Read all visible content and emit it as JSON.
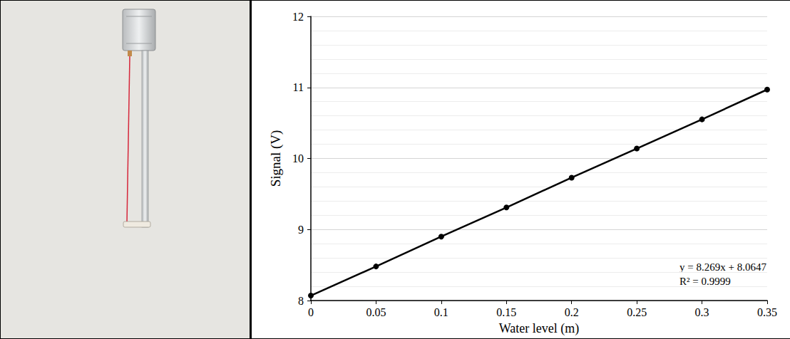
{
  "chart_data": {
    "type": "line",
    "xlabel": "Water level (m)",
    "ylabel": "Signal (V)",
    "x": [
      0,
      0.05,
      0.1,
      0.15,
      0.2,
      0.25,
      0.3,
      0.35
    ],
    "values": [
      8.07,
      8.48,
      8.9,
      9.31,
      9.73,
      10.14,
      10.55,
      10.97
    ],
    "color": "#000000",
    "marker": "circle",
    "line_style": "solid",
    "xlim": [
      0,
      0.35
    ],
    "xticks": [
      0,
      0.05,
      0.1,
      0.15,
      0.2,
      0.25,
      0.3,
      0.35
    ],
    "ylim": [
      8,
      12
    ],
    "yticks": [
      8,
      9,
      10,
      11,
      12
    ],
    "grid": true,
    "annotations": [
      "y = 8.269x + 8.0647",
      "R² = 0.9999"
    ]
  }
}
